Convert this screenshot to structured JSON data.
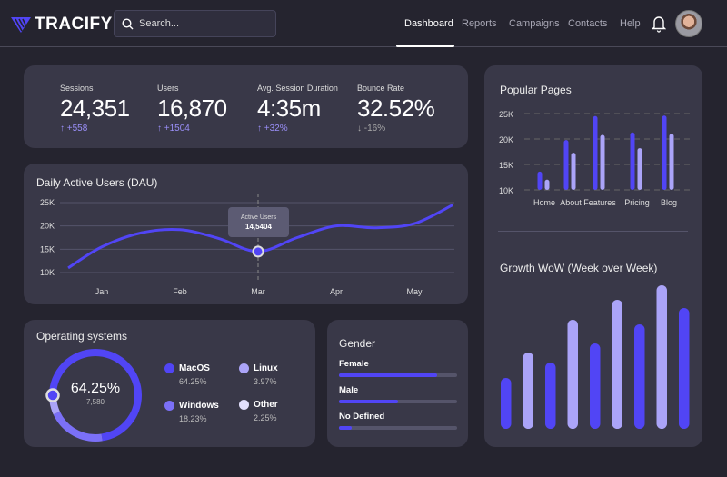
{
  "header": {
    "brand": "TRACIFY",
    "search_placeholder": "Search...",
    "nav": [
      {
        "label": "Dashboard",
        "active": true
      },
      {
        "label": "Reports"
      },
      {
        "label": "Campaigns"
      },
      {
        "label": "Contacts"
      },
      {
        "label": "Help"
      }
    ],
    "icons": {
      "logo": "tracify-logo-icon",
      "search": "search-icon",
      "notifications": "bell-icon",
      "avatar": "user-avatar"
    }
  },
  "colors": {
    "primary": "#5145f5",
    "secondary": "#aba4f8",
    "medium": "#7b70f7",
    "light": "#e2dffc",
    "card": "#393848",
    "background": "#25242f"
  },
  "stats": [
    {
      "label": "Sessions",
      "value": "24,351",
      "change": "+558",
      "direction": "up"
    },
    {
      "label": "Users",
      "value": "16,870",
      "change": "+1504",
      "direction": "up"
    },
    {
      "label": "Avg. Session Duration",
      "value": "4:35m",
      "change": "+32%",
      "direction": "up"
    },
    {
      "label": "Bounce Rate",
      "value": "32.52%",
      "change": "-16%",
      "direction": "down"
    }
  ],
  "chart_data": [
    {
      "type": "line",
      "title": "Daily Active Users (DAU)",
      "categories": [
        "Jan",
        "Feb",
        "Mar",
        "Apr",
        "May"
      ],
      "yticks": [
        "10K",
        "15K",
        "20K",
        "25K"
      ],
      "ylim": [
        10,
        25
      ],
      "grid": true,
      "x_month_index": [
        0.57,
        1,
        1.5,
        2,
        2.5,
        3,
        3.5,
        4,
        4.5,
        5,
        5.49
      ],
      "values_k": [
        11,
        15.5,
        18.5,
        19.2,
        17.3,
        14.5,
        17.5,
        20,
        19.6,
        20.5,
        24.5
      ],
      "tooltip": {
        "label": "Active Users",
        "value": "14,5404",
        "category": "Mar"
      }
    },
    {
      "type": "bar",
      "title": "Popular Pages",
      "categories": [
        "Home",
        "About",
        "Features",
        "Pricing",
        "Blog"
      ],
      "yticks": [
        "10K",
        "15K",
        "20K",
        "25K"
      ],
      "ylim": [
        10,
        25
      ],
      "grid": true,
      "series": [
        {
          "values_k": [
            13.6,
            19.8,
            24.5,
            21.3,
            24.6
          ],
          "color": "#5145f5"
        },
        {
          "values_k": [
            12,
            17.3,
            20.8,
            18.2,
            21
          ],
          "color": "#aba4f8"
        }
      ]
    },
    {
      "type": "bar",
      "title": "Growth WoW (Week over Week)",
      "values": [
        56,
        84,
        73,
        120,
        94,
        142,
        115,
        158,
        133
      ],
      "axes": false
    },
    {
      "type": "pie",
      "title": "Operating systems",
      "center_value": "64.25%",
      "center_sub": "7,580",
      "slices": [
        {
          "label": "MacOS",
          "value": 64.25,
          "pct": "64.25%",
          "color": "#5145f5"
        },
        {
          "label": "Windows",
          "value": 18.23,
          "pct": "18.23%",
          "color": "#7b70f7"
        },
        {
          "label": "Linux",
          "value": 3.97,
          "pct": "3.97%",
          "color": "#aba4f8"
        },
        {
          "label": "Other",
          "value": 2.25,
          "pct": "2.25%",
          "color": "#e2dffc"
        }
      ]
    }
  ],
  "gender": {
    "title": "Gender",
    "items": [
      {
        "label": "Female",
        "percent": 83
      },
      {
        "label": "Male",
        "percent": 50
      },
      {
        "label": "No Defined",
        "percent": 11
      }
    ]
  }
}
